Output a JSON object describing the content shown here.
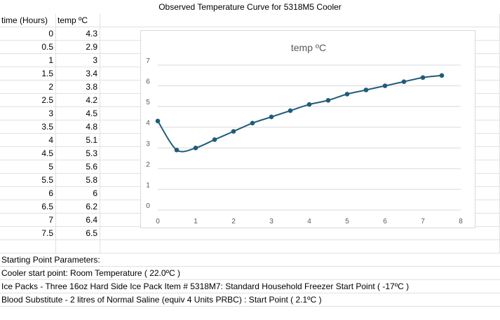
{
  "sheet": {
    "title": "Observed Temperature Curve for 5318M5 Cooler",
    "col_a_header": "time (Hours)",
    "col_b_header": "temp ºC",
    "rows": [
      {
        "t": "0",
        "v": "4.3"
      },
      {
        "t": "0.5",
        "v": "2.9"
      },
      {
        "t": "1",
        "v": "3"
      },
      {
        "t": "1.5",
        "v": "3.4"
      },
      {
        "t": "2",
        "v": "3.8"
      },
      {
        "t": "2.5",
        "v": "4.2"
      },
      {
        "t": "3",
        "v": "4.5"
      },
      {
        "t": "3.5",
        "v": "4.8"
      },
      {
        "t": "4",
        "v": "5.1"
      },
      {
        "t": "4.5",
        "v": "5.3"
      },
      {
        "t": "5",
        "v": "5.6"
      },
      {
        "t": "5.5",
        "v": "5.8"
      },
      {
        "t": "6",
        "v": "6"
      },
      {
        "t": "6.5",
        "v": "6.2"
      },
      {
        "t": "7",
        "v": "6.4"
      },
      {
        "t": "7.5",
        "v": "6.5"
      }
    ],
    "notes": [
      "Starting Point Parameters:",
      "Cooler start point: Room Temperature ( 22.0ºC )",
      "Ice Packs - Three 16oz Hard Side Ice Pack Item # 5318M7: Standard Household Freezer Start Point ( -17ºC )",
      "Blood Substitute - 2 litres of Normal Saline (equiv 4 Units PRBC) : Start Point ( 2.1ºC )"
    ]
  },
  "chart_data": {
    "type": "scatter",
    "title": "temp ºC",
    "x": [
      0,
      0.5,
      1,
      1.5,
      2,
      2.5,
      3,
      3.5,
      4,
      4.5,
      5,
      5.5,
      6,
      6.5,
      7,
      7.5
    ],
    "series": [
      {
        "name": "temp ºC",
        "values": [
          4.3,
          2.9,
          3,
          3.4,
          3.8,
          4.2,
          4.5,
          4.8,
          5.1,
          5.3,
          5.6,
          5.8,
          6,
          6.2,
          6.4,
          6.5
        ]
      }
    ],
    "xlim": [
      0,
      8
    ],
    "ylim": [
      0,
      7
    ],
    "xticks": [
      0,
      1,
      2,
      3,
      4,
      5,
      6,
      7,
      8
    ],
    "yticks": [
      0,
      1,
      2,
      3,
      4,
      5,
      6,
      7
    ],
    "grid": true,
    "line": "smooth with markers",
    "legend": "none",
    "color": "#1f5c7a",
    "grid_color": "#d9d9d9",
    "axis_label_color": "#595959"
  }
}
